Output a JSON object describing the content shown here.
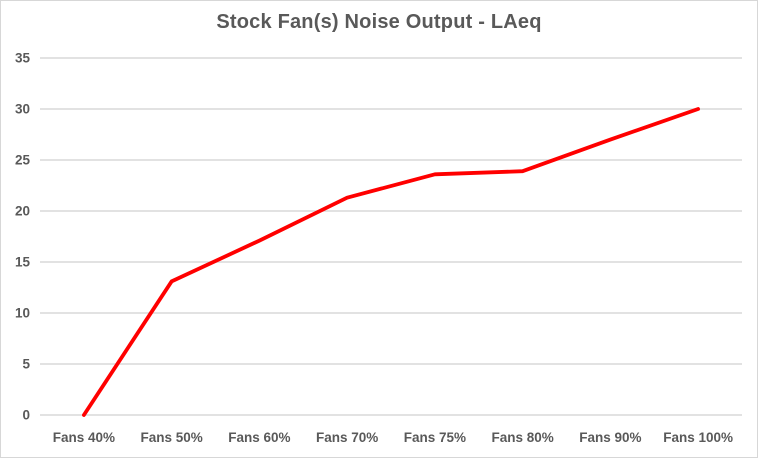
{
  "chart": {
    "title": "Stock Fan(s) Noise Output - LAeq"
  },
  "chart_data": {
    "type": "line",
    "title": "Stock Fan(s) Noise Output - LAeq",
    "categories": [
      "Fans 40%",
      "Fans 50%",
      "Fans 60%",
      "Fans 70%",
      "Fans 75%",
      "Fans 80%",
      "Fans 90%",
      "Fans 100%"
    ],
    "series": [
      {
        "name": "Stock Fan(s) Noise Output - LAeq",
        "values": [
          0,
          13.1,
          17.1,
          21.3,
          23.6,
          23.9,
          27,
          30
        ]
      }
    ],
    "xlabel": "",
    "ylabel": "",
    "ylim": [
      0,
      35
    ],
    "yticks": [
      0,
      5,
      10,
      15,
      20,
      25,
      30,
      35
    ],
    "grid": true,
    "legend": false,
    "colors": {
      "line": "#ff0000",
      "gridline": "#d9d9d9",
      "text": "#595959",
      "background": "#ffffff",
      "border": "#d7d7d7"
    }
  }
}
